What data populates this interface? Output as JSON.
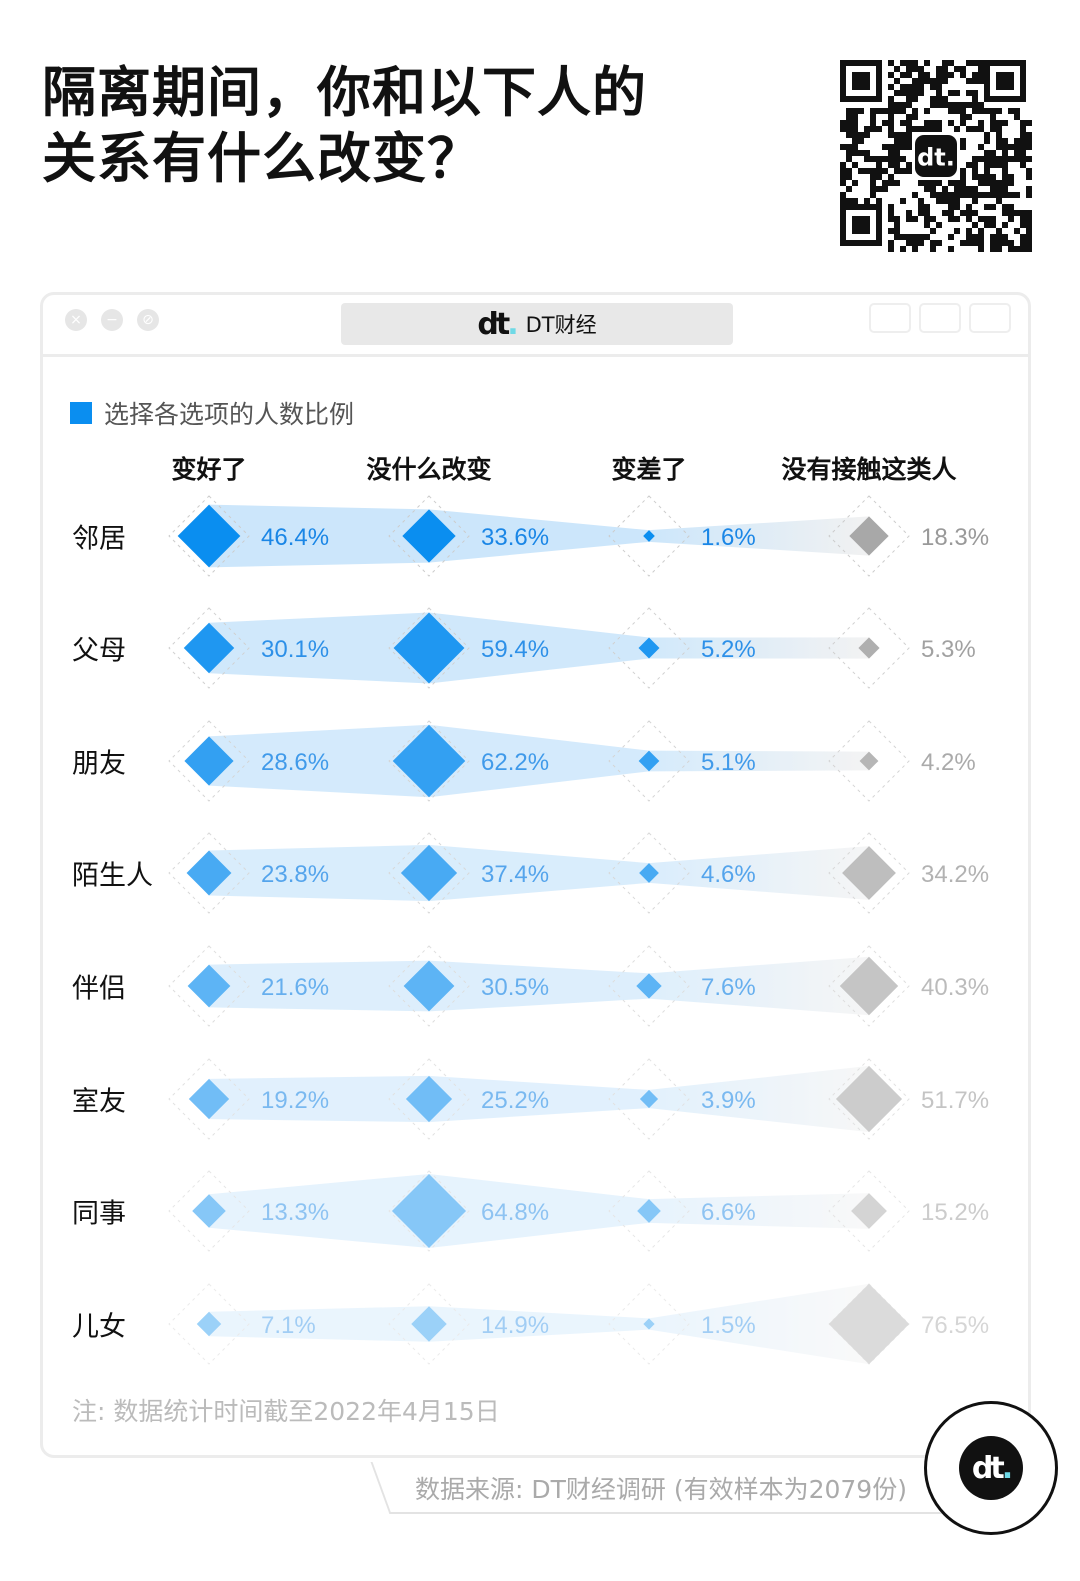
{
  "title_line1": "隔离期间，你和以下人的",
  "title_line2": "关系有什么改变？",
  "window": {
    "brand": "DT财经",
    "logo": "dt"
  },
  "chart_data": {
    "type": "diamond-matrix",
    "legend": "选择各选项的人数比例",
    "columns": [
      "变好了",
      "没什么改变",
      "变差了",
      "没有接触这类人"
    ],
    "rows": [
      "邻居",
      "父母",
      "朋友",
      "陌生人",
      "伴侣",
      "室友",
      "同事",
      "儿女"
    ],
    "series": [
      {
        "name": "变好了",
        "values": [
          46.4,
          30.1,
          28.6,
          23.8,
          21.6,
          19.2,
          13.3,
          7.1
        ]
      },
      {
        "name": "没什么改变",
        "values": [
          33.6,
          59.4,
          62.2,
          37.4,
          30.5,
          25.2,
          64.8,
          14.9
        ]
      },
      {
        "name": "变差了",
        "values": [
          1.6,
          5.2,
          5.1,
          4.6,
          7.6,
          3.9,
          6.6,
          1.5
        ]
      },
      {
        "name": "没有接触这类人",
        "values": [
          18.3,
          5.3,
          4.2,
          34.2,
          40.3,
          51.7,
          15.2,
          76.5
        ]
      }
    ],
    "unit": "%",
    "colors": {
      "blue": "#0a8ef0",
      "gray": "#a8a8a8",
      "band": "#bfe0fa"
    }
  },
  "note": "注: 数据统计时间截至2022年4月15日",
  "source": "数据来源: DT财经调研 (有效样本为2079份)"
}
